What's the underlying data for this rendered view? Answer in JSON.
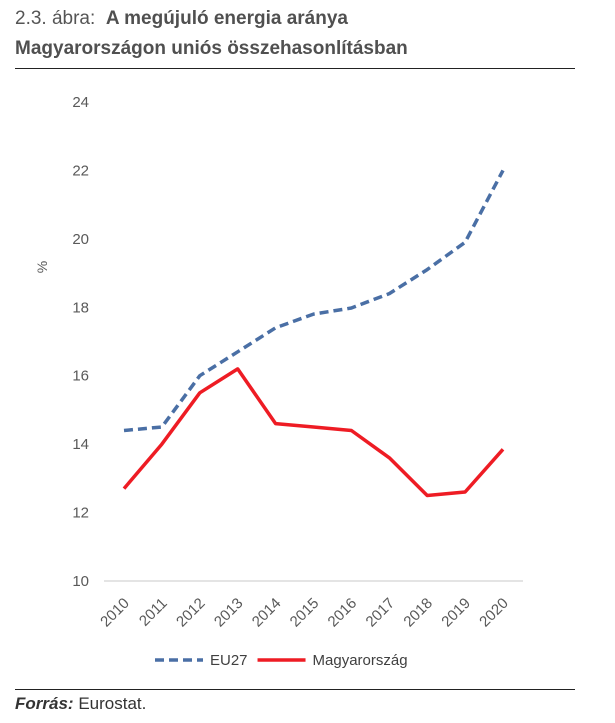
{
  "figure": {
    "number": "2.3. ábra:",
    "title_line1": "A megújuló energia aránya",
    "title_line2": "Magyarországon uniós összehasonlításban"
  },
  "source": {
    "label": "Forrás:",
    "text": "Eurostat."
  },
  "chart_data": {
    "type": "line",
    "title": "",
    "xlabel": "",
    "ylabel": "%",
    "x": [
      "2010",
      "2011",
      "2012",
      "2013",
      "2014",
      "2015",
      "2016",
      "2017",
      "2018",
      "2019",
      "2020"
    ],
    "ylim": [
      10,
      24
    ],
    "yticks": [
      10,
      12,
      14,
      16,
      18,
      20,
      22,
      24
    ],
    "grid": false,
    "legend": "bottom",
    "series": [
      {
        "name": "EU27",
        "style": "dashed",
        "color": "#4a6fa5",
        "values": [
          14.4,
          14.5,
          16.0,
          16.7,
          17.4,
          17.8,
          17.98,
          18.4,
          19.1,
          19.9,
          22.0
        ]
      },
      {
        "name": "Magyarország",
        "style": "solid",
        "color": "#ee1c24",
        "values": [
          12.7,
          14.0,
          15.5,
          16.2,
          14.6,
          14.5,
          14.4,
          13.6,
          12.5,
          12.6,
          13.85
        ]
      }
    ]
  }
}
